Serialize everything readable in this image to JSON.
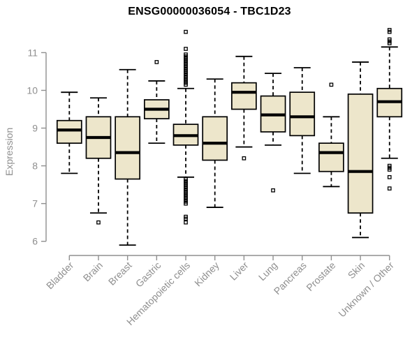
{
  "page": {
    "background": "#ffffff"
  },
  "chart_data": {
    "type": "boxplot",
    "title": "ENSG00000036054 - TBC1D23",
    "xlabel": "",
    "ylabel": "Expression",
    "y_ticks": [
      6,
      7,
      8,
      9,
      10,
      11
    ],
    "ylim": [
      5.9,
      11.65
    ],
    "grid": false,
    "legend": false,
    "categories": [
      "Bladder",
      "Brain",
      "Breast",
      "Gastric",
      "Hematopoietic cells",
      "Kidney",
      "Liver",
      "Lung",
      "Pancreas",
      "Prostate",
      "Skin",
      "Unknown / Other"
    ],
    "boxes": [
      {
        "category": "Bladder",
        "low": 7.8,
        "q1": 8.6,
        "median": 8.95,
        "q3": 9.2,
        "high": 9.95,
        "outliers": []
      },
      {
        "category": "Brain",
        "low": 6.75,
        "q1": 8.2,
        "median": 8.75,
        "q3": 9.3,
        "high": 9.8,
        "outliers": [
          6.5
        ]
      },
      {
        "category": "Breast",
        "low": 5.9,
        "q1": 7.65,
        "median": 8.35,
        "q3": 9.3,
        "high": 10.55,
        "outliers": []
      },
      {
        "category": "Gastric",
        "low": 8.6,
        "q1": 9.25,
        "median": 9.5,
        "q3": 9.75,
        "high": 10.25,
        "outliers": [
          10.75
        ]
      },
      {
        "category": "Hematopoietic cells",
        "low": 7.7,
        "q1": 8.55,
        "median": 8.8,
        "q3": 9.1,
        "high": 10.05,
        "outliers": [
          11.55,
          11.1,
          10.95,
          10.9,
          10.85,
          10.8,
          10.75,
          10.7,
          10.65,
          10.6,
          10.55,
          10.5,
          10.45,
          10.4,
          10.35,
          10.3,
          10.25,
          10.2,
          10.15,
          7.65,
          7.6,
          7.55,
          7.5,
          7.45,
          7.4,
          7.35,
          7.3,
          7.25,
          7.2,
          7.15,
          7.1,
          7.05,
          7.0,
          6.65,
          6.6,
          6.5
        ]
      },
      {
        "category": "Kidney",
        "low": 6.9,
        "q1": 8.15,
        "median": 8.6,
        "q3": 9.3,
        "high": 10.3,
        "outliers": []
      },
      {
        "category": "Liver",
        "low": 8.5,
        "q1": 9.5,
        "median": 9.95,
        "q3": 10.2,
        "high": 10.9,
        "outliers": [
          8.2
        ]
      },
      {
        "category": "Lung",
        "low": 8.55,
        "q1": 8.9,
        "median": 9.35,
        "q3": 9.85,
        "high": 10.45,
        "outliers": [
          7.35
        ]
      },
      {
        "category": "Pancreas",
        "low": 7.8,
        "q1": 8.8,
        "median": 9.3,
        "q3": 9.95,
        "high": 10.6,
        "outliers": []
      },
      {
        "category": "Prostate",
        "low": 7.45,
        "q1": 7.85,
        "median": 8.35,
        "q3": 8.6,
        "high": 9.3,
        "outliers": [
          10.15
        ]
      },
      {
        "category": "Skin",
        "low": 6.1,
        "q1": 6.75,
        "median": 7.85,
        "q3": 9.9,
        "high": 10.75,
        "outliers": []
      },
      {
        "category": "Unknown / Other",
        "low": 8.2,
        "q1": 9.3,
        "median": 9.7,
        "q3": 10.05,
        "high": 11.15,
        "outliers": [
          11.6,
          11.55,
          11.35,
          11.3,
          11.25,
          8.0,
          7.95,
          7.9,
          7.7,
          7.4
        ]
      }
    ],
    "colors": {
      "box_fill": "#EDE6CB",
      "box_stroke": "#000000",
      "median": "#000000",
      "whisker": "#000000",
      "outlier": "#000000",
      "axis": "#8f8f8f",
      "tick_label": "#8f8f8f",
      "title": "#000000"
    }
  }
}
